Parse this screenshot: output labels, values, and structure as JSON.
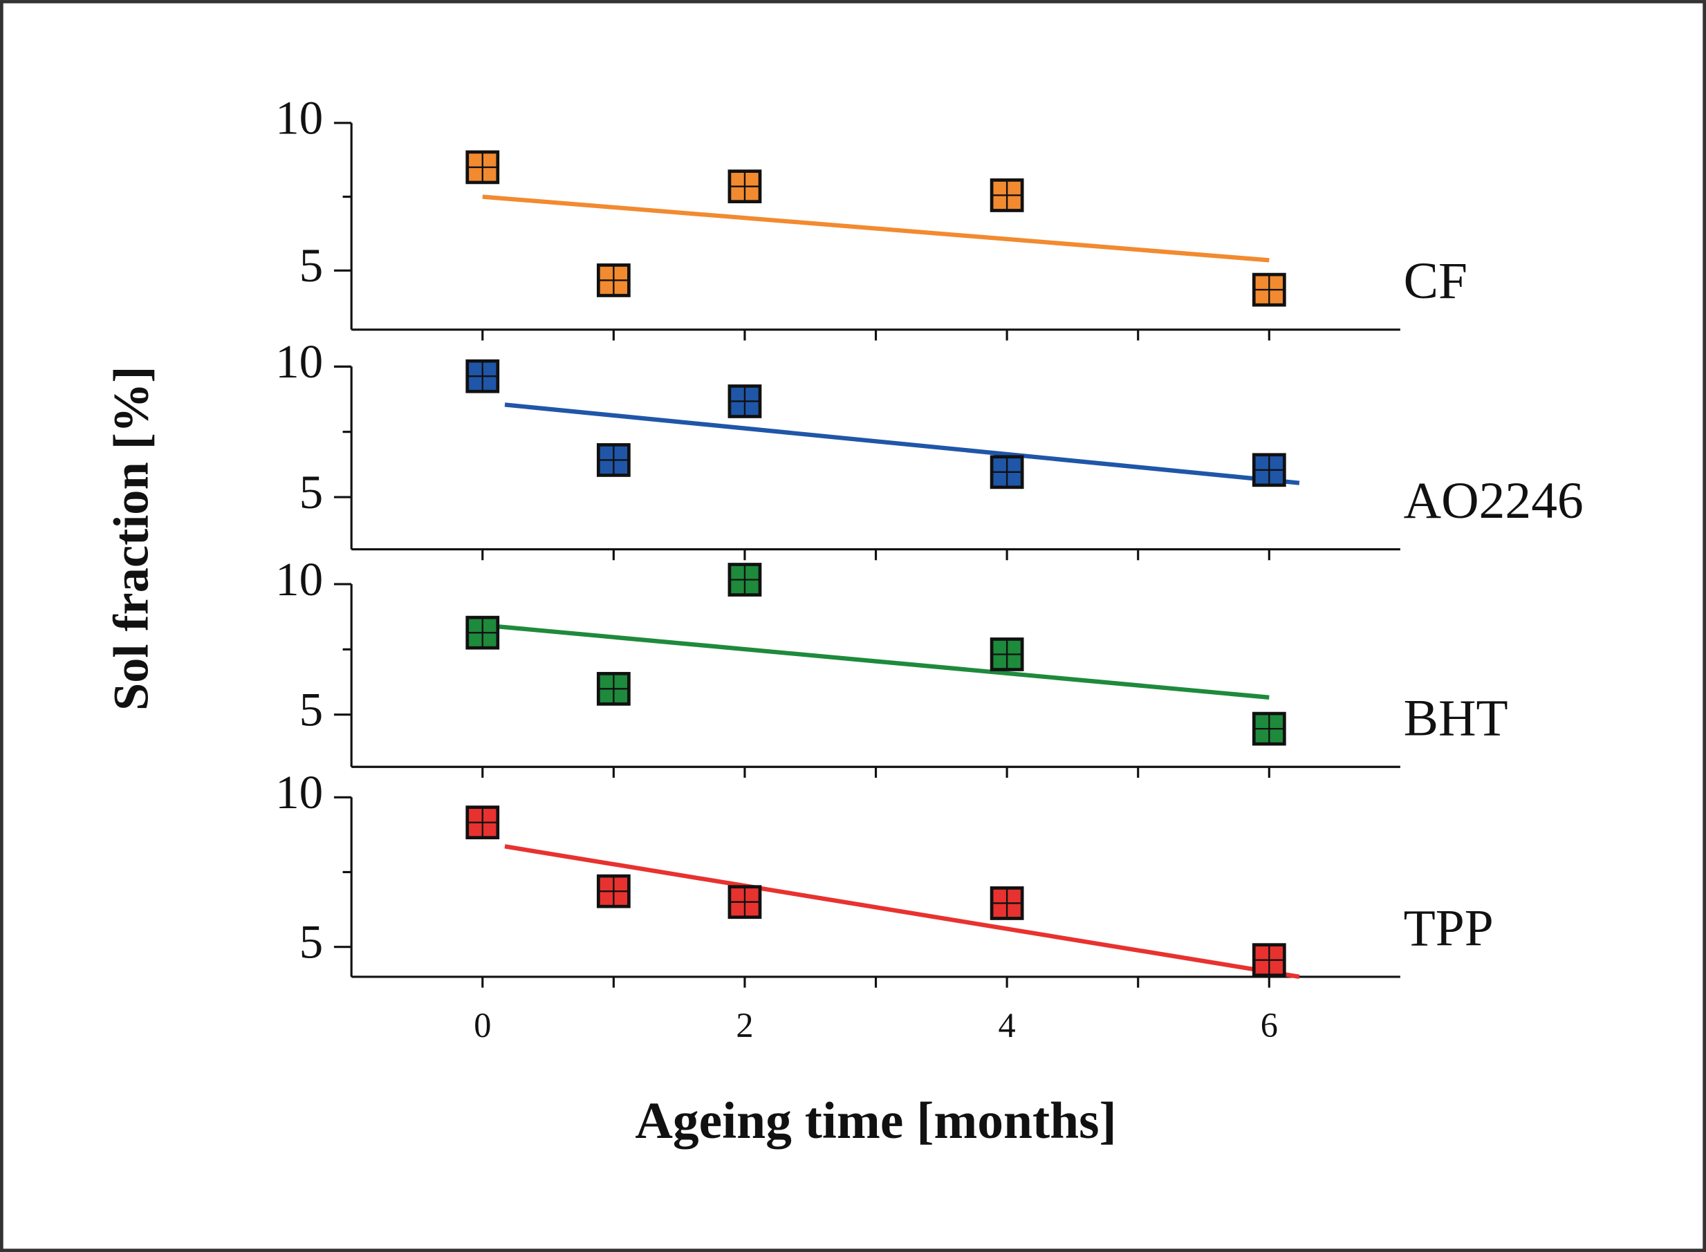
{
  "xlabel": "Ageing time [months]",
  "ylabel": "Sol fraction [%]",
  "chart_data": [
    {
      "type": "scatter",
      "name": "CF",
      "color": "#f28a30",
      "x": [
        0,
        1,
        2,
        4,
        6
      ],
      "values": [
        8.5,
        4.67,
        7.85,
        7.55,
        4.35
      ],
      "fit": {
        "x": [
          0,
          6
        ],
        "values": [
          7.5,
          5.35
        ]
      },
      "xlim": [
        -1,
        7
      ],
      "xticks": [
        0,
        2,
        4,
        6
      ],
      "minor_xticks": [
        1,
        3,
        5
      ],
      "show_xtick_labels": false,
      "ylim": [
        3,
        10
      ],
      "yticks": [
        5,
        10
      ],
      "minor_yticks": [
        7.5
      ]
    },
    {
      "type": "scatter",
      "name": "AO2246",
      "color": "#1f56a8",
      "x": [
        0,
        1,
        2,
        4,
        6
      ],
      "values": [
        9.63,
        6.42,
        8.67,
        5.96,
        6.04
      ],
      "fit": {
        "x": [
          0.17,
          6.23
        ],
        "values": [
          8.54,
          5.54
        ]
      },
      "xlim": [
        -1,
        7
      ],
      "xticks": [
        0,
        2,
        4,
        6
      ],
      "minor_xticks": [
        1,
        3,
        5
      ],
      "show_xtick_labels": false,
      "ylim": [
        3,
        10
      ],
      "yticks": [
        5,
        10
      ],
      "minor_yticks": [
        7.5
      ]
    },
    {
      "type": "scatter",
      "name": "BHT",
      "color": "#1e8a3c",
      "x": [
        0,
        1,
        2,
        4,
        6
      ],
      "values": [
        8.14,
        5.99,
        10.17,
        7.31,
        4.46
      ],
      "fit": {
        "x": [
          0,
          6
        ],
        "values": [
          8.43,
          5.66
        ]
      },
      "xlim": [
        -1,
        7
      ],
      "xticks": [
        0,
        2,
        4,
        6
      ],
      "minor_xticks": [
        1,
        3,
        5
      ],
      "show_xtick_labels": false,
      "ylim": [
        3,
        10
      ],
      "yticks": [
        5,
        10
      ],
      "minor_yticks": [
        7.5
      ]
    },
    {
      "type": "scatter",
      "name": "TPP",
      "color": "#e8322f",
      "x": [
        0,
        1,
        2,
        4,
        6
      ],
      "values": [
        9.16,
        6.86,
        6.5,
        6.46,
        4.56
      ],
      "fit": {
        "x": [
          0.17,
          6.23
        ],
        "values": [
          8.36,
          4.0
        ]
      },
      "xlim": [
        -1,
        7
      ],
      "xticks": [
        0,
        2,
        4,
        6
      ],
      "minor_xticks": [
        1,
        3,
        5
      ],
      "show_xtick_labels": true,
      "ylim": [
        4,
        10
      ],
      "yticks": [
        5,
        10
      ],
      "minor_yticks": [
        7.5
      ]
    }
  ]
}
